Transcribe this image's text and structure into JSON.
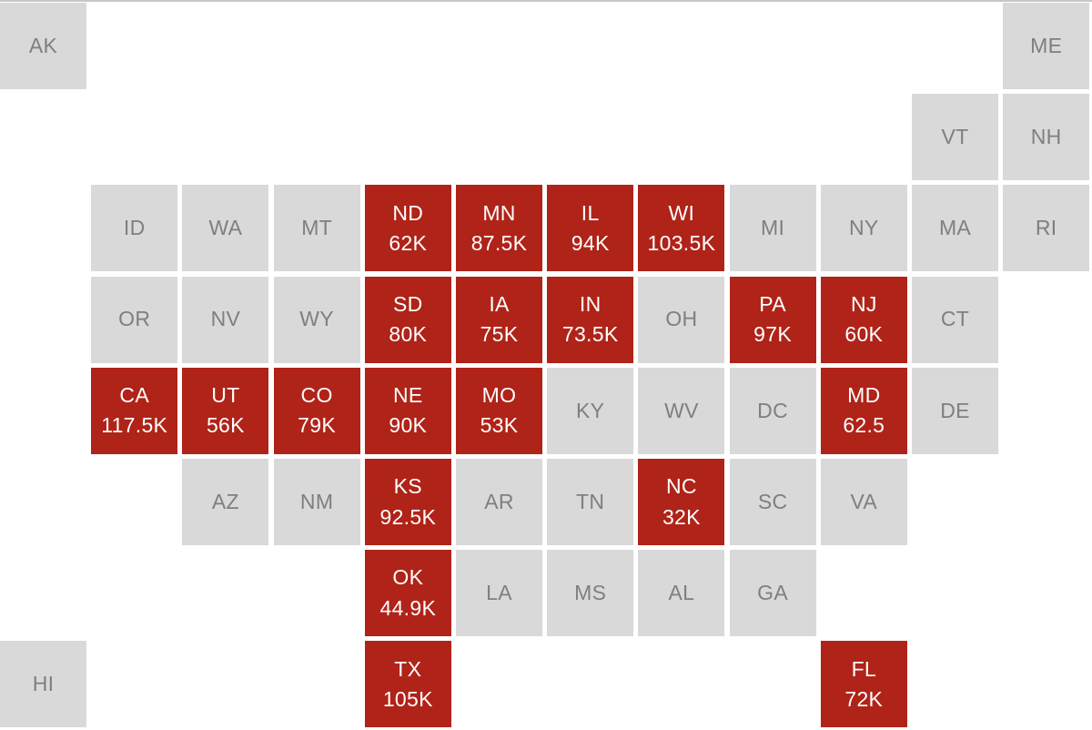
{
  "colors": {
    "highlight": "#b02318",
    "inactive": "#d9d9d9",
    "inactive_text": "#7f7f7f",
    "highlight_text": "#ffffff"
  },
  "states": [
    {
      "abbr": "AK",
      "value": null,
      "row": 0,
      "col": 0
    },
    {
      "abbr": "ME",
      "value": null,
      "row": 0,
      "col": 11
    },
    {
      "abbr": "VT",
      "value": null,
      "row": 1,
      "col": 10
    },
    {
      "abbr": "NH",
      "value": null,
      "row": 1,
      "col": 11
    },
    {
      "abbr": "ID",
      "value": null,
      "row": 2,
      "col": 1
    },
    {
      "abbr": "WA",
      "value": null,
      "row": 2,
      "col": 2
    },
    {
      "abbr": "MT",
      "value": null,
      "row": 2,
      "col": 3
    },
    {
      "abbr": "ND",
      "value": "62K",
      "row": 2,
      "col": 4
    },
    {
      "abbr": "MN",
      "value": "87.5K",
      "row": 2,
      "col": 5
    },
    {
      "abbr": "IL",
      "value": "94K",
      "row": 2,
      "col": 6
    },
    {
      "abbr": "WI",
      "value": "103.5K",
      "row": 2,
      "col": 7
    },
    {
      "abbr": "MI",
      "value": null,
      "row": 2,
      "col": 8
    },
    {
      "abbr": "NY",
      "value": null,
      "row": 2,
      "col": 9
    },
    {
      "abbr": "MA",
      "value": null,
      "row": 2,
      "col": 10
    },
    {
      "abbr": "RI",
      "value": null,
      "row": 2,
      "col": 11
    },
    {
      "abbr": "OR",
      "value": null,
      "row": 3,
      "col": 1
    },
    {
      "abbr": "NV",
      "value": null,
      "row": 3,
      "col": 2
    },
    {
      "abbr": "WY",
      "value": null,
      "row": 3,
      "col": 3
    },
    {
      "abbr": "SD",
      "value": "80K",
      "row": 3,
      "col": 4
    },
    {
      "abbr": "IA",
      "value": "75K",
      "row": 3,
      "col": 5
    },
    {
      "abbr": "IN",
      "value": "73.5K",
      "row": 3,
      "col": 6
    },
    {
      "abbr": "OH",
      "value": null,
      "row": 3,
      "col": 7
    },
    {
      "abbr": "PA",
      "value": "97K",
      "row": 3,
      "col": 8
    },
    {
      "abbr": "NJ",
      "value": "60K",
      "row": 3,
      "col": 9
    },
    {
      "abbr": "CT",
      "value": null,
      "row": 3,
      "col": 10
    },
    {
      "abbr": "CA",
      "value": "117.5K",
      "row": 4,
      "col": 1
    },
    {
      "abbr": "UT",
      "value": "56K",
      "row": 4,
      "col": 2
    },
    {
      "abbr": "CO",
      "value": "79K",
      "row": 4,
      "col": 3
    },
    {
      "abbr": "NE",
      "value": "90K",
      "row": 4,
      "col": 4
    },
    {
      "abbr": "MO",
      "value": "53K",
      "row": 4,
      "col": 5
    },
    {
      "abbr": "KY",
      "value": null,
      "row": 4,
      "col": 6
    },
    {
      "abbr": "WV",
      "value": null,
      "row": 4,
      "col": 7
    },
    {
      "abbr": "DC",
      "value": null,
      "row": 4,
      "col": 8
    },
    {
      "abbr": "MD",
      "value": "62.5",
      "row": 4,
      "col": 9
    },
    {
      "abbr": "DE",
      "value": null,
      "row": 4,
      "col": 10
    },
    {
      "abbr": "AZ",
      "value": null,
      "row": 5,
      "col": 2
    },
    {
      "abbr": "NM",
      "value": null,
      "row": 5,
      "col": 3
    },
    {
      "abbr": "KS",
      "value": "92.5K",
      "row": 5,
      "col": 4
    },
    {
      "abbr": "AR",
      "value": null,
      "row": 5,
      "col": 5
    },
    {
      "abbr": "TN",
      "value": null,
      "row": 5,
      "col": 6
    },
    {
      "abbr": "NC",
      "value": "32K",
      "row": 5,
      "col": 7
    },
    {
      "abbr": "SC",
      "value": null,
      "row": 5,
      "col": 8
    },
    {
      "abbr": "VA",
      "value": null,
      "row": 5,
      "col": 9
    },
    {
      "abbr": "OK",
      "value": "44.9K",
      "row": 6,
      "col": 4
    },
    {
      "abbr": "LA",
      "value": null,
      "row": 6,
      "col": 5
    },
    {
      "abbr": "MS",
      "value": null,
      "row": 6,
      "col": 6
    },
    {
      "abbr": "AL",
      "value": null,
      "row": 6,
      "col": 7
    },
    {
      "abbr": "GA",
      "value": null,
      "row": 6,
      "col": 8
    },
    {
      "abbr": "HI",
      "value": null,
      "row": 7,
      "col": 0
    },
    {
      "abbr": "TX",
      "value": "105K",
      "row": 7,
      "col": 4
    },
    {
      "abbr": "FL",
      "value": "72K",
      "row": 7,
      "col": 9
    }
  ]
}
